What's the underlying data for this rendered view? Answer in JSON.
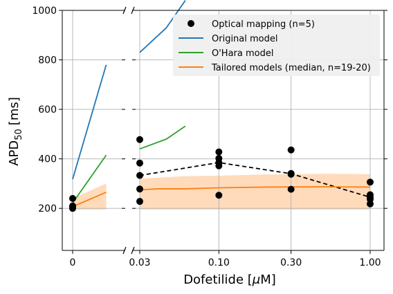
{
  "chart_data": {
    "type": "line",
    "title": "",
    "xlabel": "Dofetilide [μM]",
    "ylabel": "APD50 [ms]",
    "ylabel_main": "APD",
    "ylabel_sub": "50",
    "ylabel_unit": "[ms]",
    "xlabel_main": "Dofetilide [",
    "xlabel_mu": "μ",
    "xlabel_rest": "M]",
    "x_scale": "log (broken axis: 0 shown separately)",
    "ylim": [
      30,
      1000
    ],
    "yticks": [
      200,
      400,
      600,
      800,
      1000
    ],
    "ytick_labels": [
      "200",
      "400",
      "600",
      "800",
      "1000"
    ],
    "xticks": [
      0,
      0.03,
      0.1,
      0.3,
      1.0
    ],
    "xtick_labels": [
      "0",
      "0.03",
      "0.10",
      "0.30",
      "1.00"
    ],
    "grid": true,
    "legend_position": "top-right",
    "legend": [
      {
        "label": "Optical mapping (n=5)",
        "kind": "marker",
        "color": "#000000"
      },
      {
        "label": "Original model",
        "kind": "line",
        "color": "#1f77b4"
      },
      {
        "label": "O'Hara model",
        "kind": "line",
        "color": "#2ca02c"
      },
      {
        "label": "Tailored models (median, n=19-20)",
        "kind": "line",
        "color": "#ff7f0e"
      }
    ],
    "series": [
      {
        "name": "Optical mapping (n=5)",
        "kind": "scatter",
        "color": "#000000",
        "points": [
          {
            "x": 0,
            "y": 240
          },
          {
            "x": 0,
            "y": 210
          },
          {
            "x": 0,
            "y": 205
          },
          {
            "x": 0,
            "y": 200
          },
          {
            "x": 0.03,
            "y": 478
          },
          {
            "x": 0.03,
            "y": 383
          },
          {
            "x": 0.03,
            "y": 333
          },
          {
            "x": 0.03,
            "y": 278
          },
          {
            "x": 0.03,
            "y": 228
          },
          {
            "x": 0.1,
            "y": 428
          },
          {
            "x": 0.1,
            "y": 402
          },
          {
            "x": 0.1,
            "y": 385
          },
          {
            "x": 0.1,
            "y": 372
          },
          {
            "x": 0.1,
            "y": 253
          },
          {
            "x": 0.3,
            "y": 436
          },
          {
            "x": 0.3,
            "y": 341
          },
          {
            "x": 0.3,
            "y": 338
          },
          {
            "x": 0.3,
            "y": 277
          },
          {
            "x": 1.0,
            "y": 306
          },
          {
            "x": 1.0,
            "y": 255
          },
          {
            "x": 1.0,
            "y": 245
          },
          {
            "x": 1.0,
            "y": 237
          },
          {
            "x": 1.0,
            "y": 218
          }
        ]
      },
      {
        "name": "Optical mapping median",
        "kind": "dashed-line",
        "color": "#000000",
        "points": [
          {
            "x": 0,
            "y": 210
          },
          {
            "x": 0.03,
            "y": 333
          },
          {
            "x": 0.1,
            "y": 385
          },
          {
            "x": 0.3,
            "y": 340
          },
          {
            "x": 1.0,
            "y": 245
          }
        ]
      },
      {
        "name": "Original model",
        "kind": "line",
        "color": "#1f77b4",
        "points": [
          {
            "x": 0,
            "y": 318
          },
          {
            "x": 0.015,
            "y": 780
          },
          {
            "x": 0.03,
            "y": 830
          },
          {
            "x": 0.045,
            "y": 930
          },
          {
            "x": 0.06,
            "y": 1040
          }
        ]
      },
      {
        "name": "O'Hara model",
        "kind": "line",
        "color": "#2ca02c",
        "points": [
          {
            "x": 0,
            "y": 222
          },
          {
            "x": 0.015,
            "y": 415
          },
          {
            "x": 0.03,
            "y": 440
          },
          {
            "x": 0.045,
            "y": 480
          },
          {
            "x": 0.06,
            "y": 532
          }
        ]
      },
      {
        "name": "Tailored models (median, n=19-20)",
        "kind": "line",
        "color": "#ff7f0e",
        "points": [
          {
            "x": 0,
            "y": 207
          },
          {
            "x": 0.015,
            "y": 265
          },
          {
            "x": 0.03,
            "y": 275
          },
          {
            "x": 0.04,
            "y": 279
          },
          {
            "x": 0.06,
            "y": 279
          },
          {
            "x": 0.1,
            "y": 283
          },
          {
            "x": 0.2,
            "y": 286
          },
          {
            "x": 0.5,
            "y": 287
          },
          {
            "x": 1.0,
            "y": 286
          }
        ]
      },
      {
        "name": "Tailored models range",
        "kind": "band",
        "color": "#ffdbbb",
        "x": [
          0,
          0.015,
          0.03,
          0.06,
          0.1,
          0.2,
          0.3,
          0.5,
          1.0
        ],
        "upper": [
          240,
          300,
          320,
          330,
          332,
          337,
          338,
          340,
          338
        ],
        "lower": [
          195,
          195,
          195,
          195,
          195,
          195,
          195,
          195,
          195
        ]
      }
    ]
  }
}
